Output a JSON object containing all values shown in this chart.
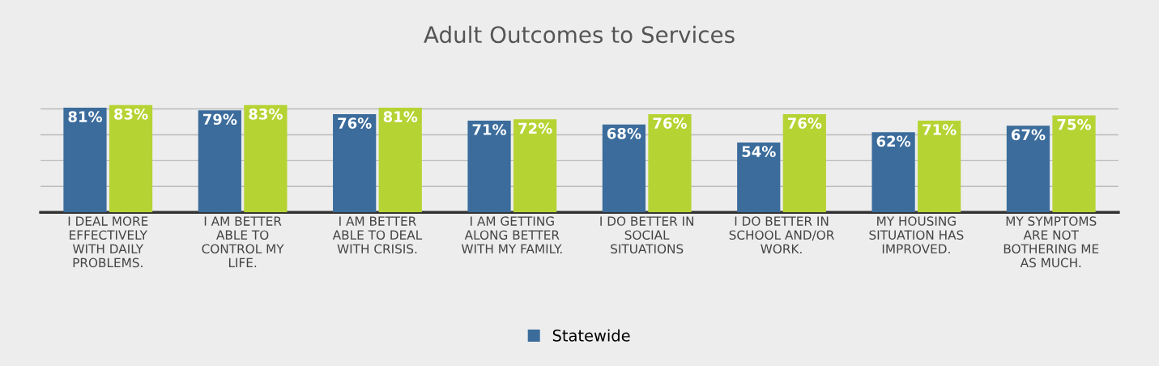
{
  "chart_data": {
    "type": "bar",
    "title": "Adult Outcomes to Services",
    "categories": [
      "I DEAL MORE\nEFFECTIVELY\nWITH DAILY\nPROBLEMS.",
      "I AM BETTER\nABLE TO\nCONTROL MY\nLIFE.",
      "I AM BETTER\nABLE TO DEAL\nWITH CRISIS.",
      "I AM GETTING\nALONG BETTER\nWITH MY FAMILY.",
      "I DO BETTER IN\nSOCIAL\nSITUATIONS",
      "I DO BETTER IN\nSCHOOL AND/OR\nWORK.",
      "MY HOUSING\nSITUATION HAS\nIMPROVED.",
      "MY SYMPTOMS\nARE NOT\nBOTHERING ME\nAS MUCH."
    ],
    "series": [
      {
        "name": "Statewide",
        "color": "#3b6c9c",
        "values": [
          81,
          79,
          76,
          71,
          68,
          54,
          62,
          67
        ],
        "value_labels": [
          "81%",
          "79%",
          "76%",
          "71%",
          "68%",
          "54%",
          "62%",
          "67%"
        ]
      },
      {
        "color": "#b6d334",
        "values": [
          83,
          83,
          81,
          72,
          76,
          76,
          71,
          75
        ],
        "value_labels": [
          "83%",
          "83%",
          "81%",
          "72%",
          "76%",
          "76%",
          "71%",
          "75%"
        ]
      }
    ],
    "ylim": [
      0,
      85
    ],
    "yticks": [
      {
        "value": 0,
        "label": null
      },
      {
        "value": 20,
        "label": null
      },
      {
        "value": 40,
        "label": null
      },
      {
        "value": 60,
        "label": null
      },
      {
        "value": 80,
        "label": null
      }
    ],
    "tick_labels": "x",
    "grid": "y",
    "legend": "bottom"
  }
}
